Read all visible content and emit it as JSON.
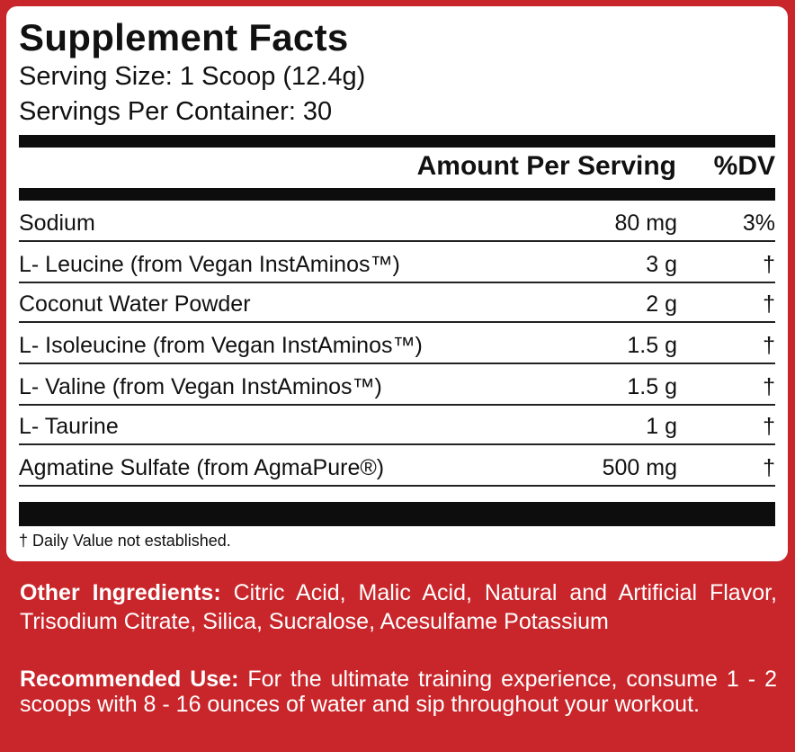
{
  "panel": {
    "title": "Supplement Facts",
    "serving_size": "Serving Size: 1 Scoop (12.4g)",
    "servings_per_container": "Servings Per Container: 30"
  },
  "table": {
    "header_amount": "Amount Per Serving",
    "header_dv": "%DV",
    "rows": [
      {
        "name": "Sodium",
        "amount": "80 mg",
        "dv": "3%"
      },
      {
        "name": "L- Leucine (from Vegan InstAminos™)",
        "amount": "3 g",
        "dv": "†"
      },
      {
        "name": "Coconut Water Powder",
        "amount": "2 g",
        "dv": "†"
      },
      {
        "name": "L- Isoleucine (from Vegan InstAminos™)",
        "amount": "1.5 g",
        "dv": "†"
      },
      {
        "name": "L- Valine (from Vegan InstAminos™)",
        "amount": "1.5 g",
        "dv": "†"
      },
      {
        "name": "L- Taurine",
        "amount": "1 g",
        "dv": "†"
      },
      {
        "name": "Agmatine Sulfate (from AgmaPure®)",
        "amount": "500 mg",
        "dv": "†"
      }
    ],
    "footnote": "† Daily Value not established."
  },
  "other_ingredients": {
    "label": "Other Ingredients:",
    "text": "Citric Acid, Malic Acid, Natural and Artificial Flavor, Trisodium Citrate, Silica, Sucralose, Acesulfame Potassium"
  },
  "recommended_use": {
    "label": "Recommended Use:",
    "text": "For the ultimate training experience, consume 1 - 2 scoops with 8 - 16 ounces of water and sip throughout your workout."
  },
  "colors": {
    "background_red": "#c8262b",
    "panel_white": "#ffffff",
    "bar_black": "#0d0d0d"
  }
}
